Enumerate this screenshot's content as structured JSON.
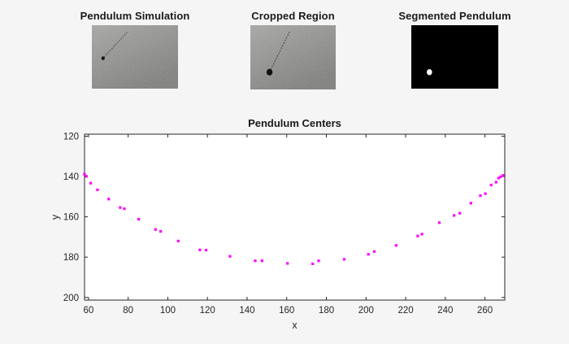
{
  "figure": {
    "background": "#f5f5f5"
  },
  "panels": [
    {
      "title": "Pendulum Simulation",
      "type": "grayscale-noise-image",
      "gray_top": "#a6a6a4",
      "gray_bottom": "#7b7b79",
      "pendulum": {
        "pivot_rel": [
          0.41,
          0.11
        ],
        "bob_rel": [
          0.13,
          0.52
        ],
        "bob_radius": 2.1,
        "rod_color": "#2e2e2e",
        "bob_color": "#141414"
      }
    },
    {
      "title": "Cropped Region",
      "type": "grayscale-noise-image",
      "gray_top": "#a6a6a4",
      "gray_bottom": "#7b7b79",
      "pendulum": {
        "pivot_rel": [
          0.46,
          0.1
        ],
        "bob_rel": [
          0.225,
          0.73
        ],
        "bob_radius": 3.7,
        "rod_color": "#2e2e2e",
        "bob_color": "#111111"
      }
    },
    {
      "title": "Segmented Pendulum",
      "type": "binary-mask-image",
      "bg_color": "#000000",
      "blob": {
        "center_rel": [
          0.208,
          0.74
        ],
        "radius": 3.3,
        "color": "#ffffff"
      }
    }
  ],
  "chart_data": {
    "type": "scatter",
    "title": "Pendulum Centers",
    "xlabel": "x",
    "ylabel": "y",
    "xlim": [
      58,
      270
    ],
    "ylim": [
      119,
      201.3
    ],
    "y_axis_reversed": true,
    "x_ticks": [
      60,
      80,
      100,
      120,
      140,
      160,
      180,
      200,
      220,
      240,
      260
    ],
    "y_ticks": [
      120,
      140,
      160,
      180,
      200
    ],
    "grid": false,
    "box": true,
    "tick_dir": "in",
    "legend": null,
    "axis_color": "#262626",
    "plot_bg": "#ffffff",
    "marker": {
      "shape": "square",
      "color": "#ff00ff",
      "size": 3.2
    },
    "points": [
      [
        58.0,
        138.8
      ],
      [
        58.9,
        139.9
      ],
      [
        61.1,
        143.3
      ],
      [
        64.5,
        146.6
      ],
      [
        70.2,
        151.2
      ],
      [
        76.0,
        155.4
      ],
      [
        78.1,
        156.0
      ],
      [
        85.3,
        161.2
      ],
      [
        93.8,
        166.3
      ],
      [
        96.4,
        167.2
      ],
      [
        105.3,
        172.0
      ],
      [
        116.2,
        176.4
      ],
      [
        119.3,
        176.5
      ],
      [
        131.4,
        179.6
      ],
      [
        144.1,
        181.8
      ],
      [
        147.5,
        181.8
      ],
      [
        160.4,
        183.1
      ],
      [
        173.1,
        183.3
      ],
      [
        176.1,
        181.8
      ],
      [
        189.0,
        181.1
      ],
      [
        201.2,
        178.6
      ],
      [
        204.2,
        177.2
      ],
      [
        215.2,
        174.2
      ],
      [
        226.1,
        169.5
      ],
      [
        228.2,
        168.6
      ],
      [
        237.0,
        162.9
      ],
      [
        244.4,
        159.3
      ],
      [
        247.3,
        158.2
      ],
      [
        252.9,
        153.2
      ],
      [
        257.7,
        149.5
      ],
      [
        260.2,
        148.5
      ],
      [
        263.1,
        144.2
      ],
      [
        265.6,
        142.8
      ],
      [
        266.9,
        140.8
      ],
      [
        267.9,
        140.1
      ],
      [
        269.2,
        139.4
      ]
    ]
  }
}
